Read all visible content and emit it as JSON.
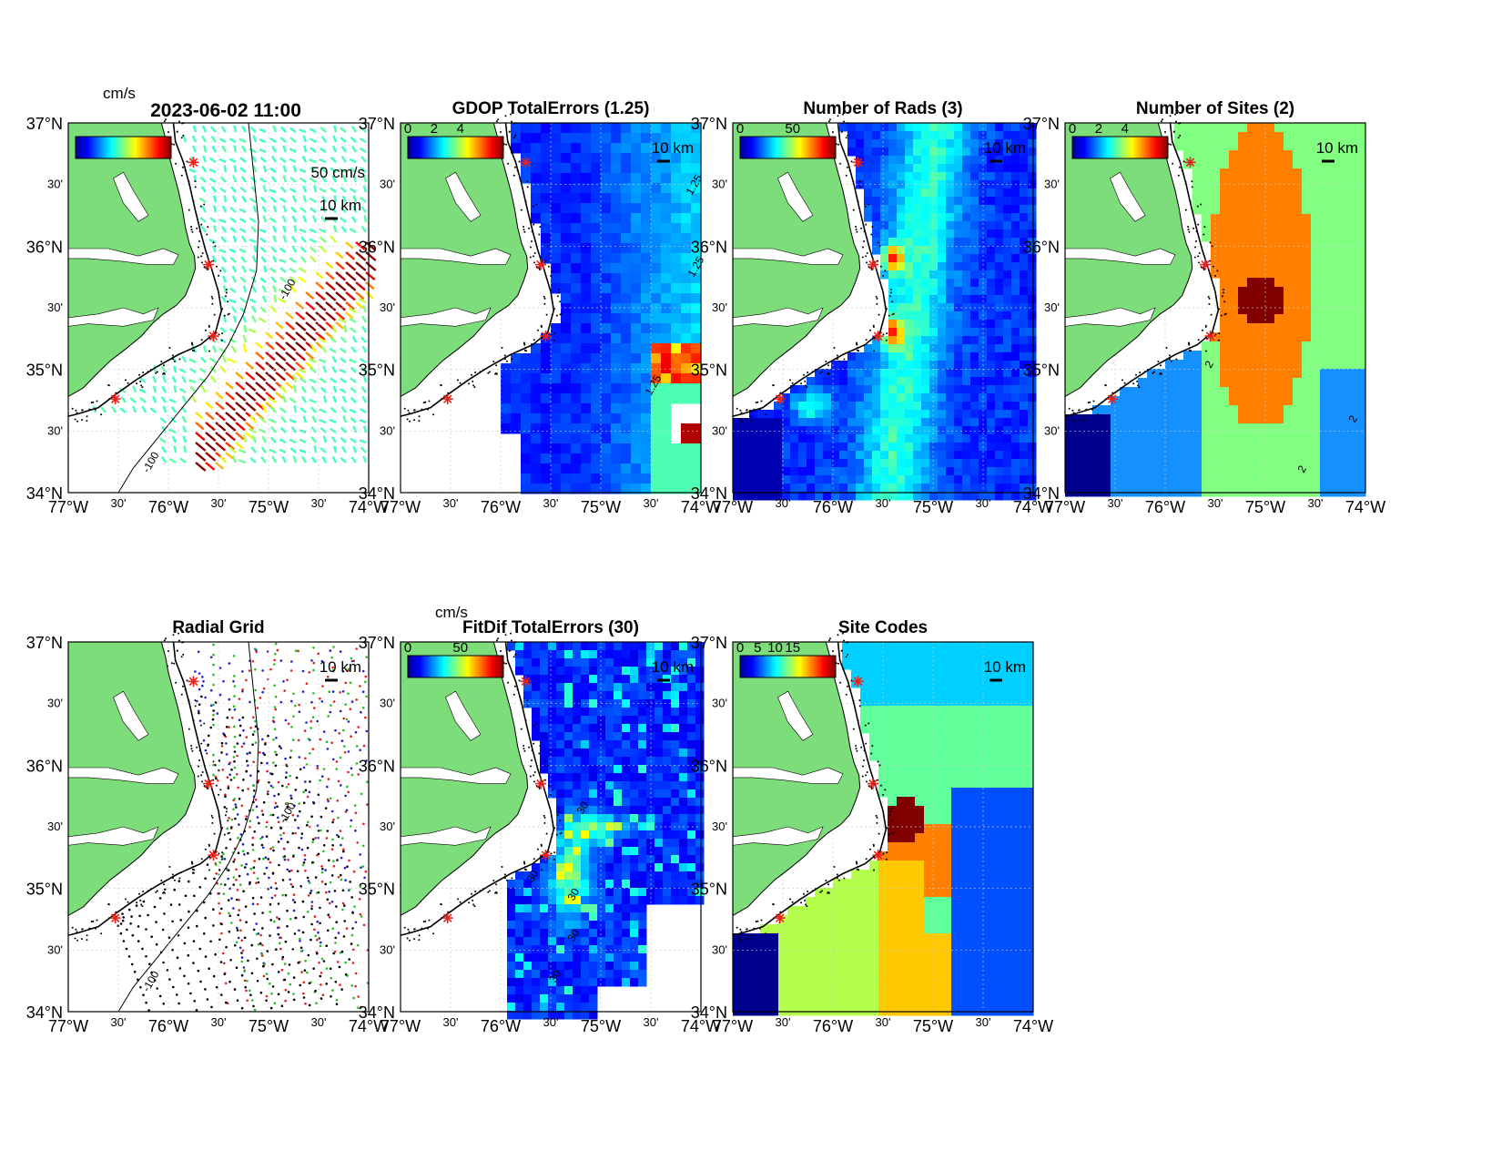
{
  "figure_title": "2023-06-02 11:00",
  "panels": [
    {
      "id": "currents",
      "title": "",
      "cbar_label": "cm/s",
      "cbar_ticks": [],
      "scale_label": "10 km",
      "vector_label": "50 cm/s",
      "contours": [
        "-100",
        "-100"
      ]
    },
    {
      "id": "gdop",
      "title": "GDOP TotalErrors (1.25)",
      "cbar_label": "",
      "cbar_ticks": [
        "0",
        "2",
        "4"
      ],
      "scale_label": "10 km",
      "contours": [
        "1.25",
        "1.25",
        "1.25"
      ]
    },
    {
      "id": "nrads",
      "title": "Number of Rads (3)",
      "cbar_label": "",
      "cbar_ticks": [
        "0",
        "50"
      ],
      "scale_label": "10 km",
      "contours": []
    },
    {
      "id": "nsites",
      "title": "Number of Sites (2)",
      "cbar_label": "",
      "cbar_ticks": [
        "0",
        "2",
        "4"
      ],
      "scale_label": "10 km",
      "contours": [
        "2",
        "2",
        "2"
      ]
    },
    {
      "id": "radgrid",
      "title": "Radial Grid",
      "cbar_label": "",
      "cbar_ticks": [],
      "scale_label": "10 km",
      "contours": [
        "-100",
        "-100"
      ]
    },
    {
      "id": "fitdif",
      "title": "FitDif TotalErrors (30)",
      "cbar_label": "cm/s",
      "cbar_ticks": [
        "0",
        "50"
      ],
      "scale_label": "10 km",
      "contours": [
        "30",
        "30",
        "30",
        "30",
        "30"
      ]
    },
    {
      "id": "sitecodes",
      "title": "Site Codes",
      "cbar_label": "",
      "cbar_ticks": [
        "0",
        "5",
        "10",
        "15"
      ],
      "scale_label": "10 km",
      "contours": []
    }
  ],
  "axes": {
    "lat_labels": [
      "34°N",
      "30'",
      "35°N",
      "30'",
      "36°N",
      "30'",
      "37°N"
    ],
    "lon_labels": [
      "77°W",
      "30'",
      "76°W",
      "30'",
      "75°W",
      "30'",
      "74°W"
    ],
    "lat_range": [
      34,
      37
    ],
    "lon_range": [
      -77,
      -74
    ]
  },
  "colors": {
    "land": "#7ddd7a",
    "ocean": "#ffffff",
    "site_marker": "#e8221b"
  },
  "sites": [
    {
      "lon": -75.75,
      "lat": 36.68
    },
    {
      "lon": -75.6,
      "lat": 35.85
    },
    {
      "lon": -75.55,
      "lat": 35.27
    },
    {
      "lon": -76.53,
      "lat": 34.76
    }
  ]
}
